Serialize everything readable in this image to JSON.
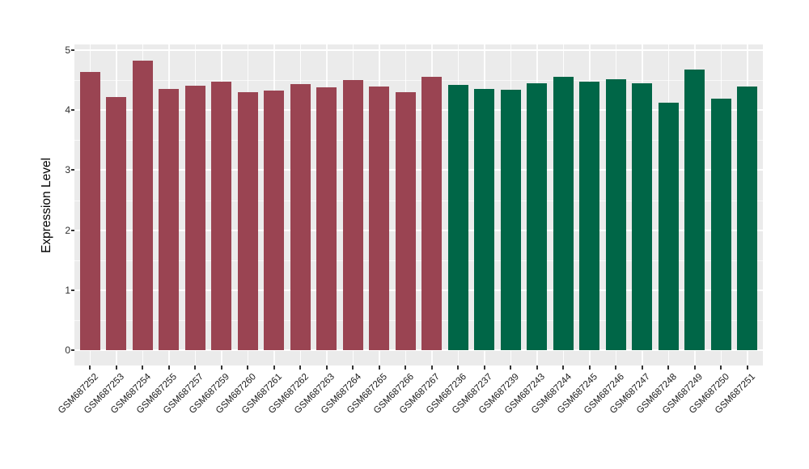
{
  "chart_data": {
    "type": "bar",
    "title": "",
    "xlabel": "",
    "ylabel": "Expression Level",
    "ylim": [
      0,
      5
    ],
    "yticks": [
      0,
      1,
      2,
      3,
      4,
      5
    ],
    "minor_gridlines": [
      0.5,
      1.5,
      2.5,
      3.5,
      4.5
    ],
    "grid": "on",
    "legend": "none",
    "panel_background": "#EBEBEB",
    "gridline_color": "#FFFFFF",
    "tick_color": "#333333",
    "categories": [
      "GSM687252",
      "GSM687253",
      "GSM687254",
      "GSM687255",
      "GSM687257",
      "GSM687259",
      "GSM687260",
      "GSM687261",
      "GSM687262",
      "GSM687263",
      "GSM687264",
      "GSM687265",
      "GSM687266",
      "GSM687267",
      "GSM687236",
      "GSM687237",
      "GSM687239",
      "GSM687243",
      "GSM687244",
      "GSM687245",
      "GSM687246",
      "GSM687247",
      "GSM687248",
      "GSM687249",
      "GSM687250",
      "GSM687251"
    ],
    "values": [
      4.63,
      4.22,
      4.83,
      4.36,
      4.41,
      4.47,
      4.3,
      4.32,
      4.44,
      4.38,
      4.5,
      4.4,
      4.3,
      4.56,
      4.42,
      4.36,
      4.34,
      4.45,
      4.56,
      4.47,
      4.52,
      4.45,
      4.13,
      4.68,
      4.19,
      4.39
    ],
    "groups": [
      "group1",
      "group1",
      "group1",
      "group1",
      "group1",
      "group1",
      "group1",
      "group1",
      "group1",
      "group1",
      "group1",
      "group1",
      "group1",
      "group1",
      "group2",
      "group2",
      "group2",
      "group2",
      "group2",
      "group2",
      "group2",
      "group2",
      "group2",
      "group2",
      "group2",
      "group2"
    ],
    "group_colors": {
      "group1": "#9A4452",
      "group2": "#006647"
    }
  }
}
